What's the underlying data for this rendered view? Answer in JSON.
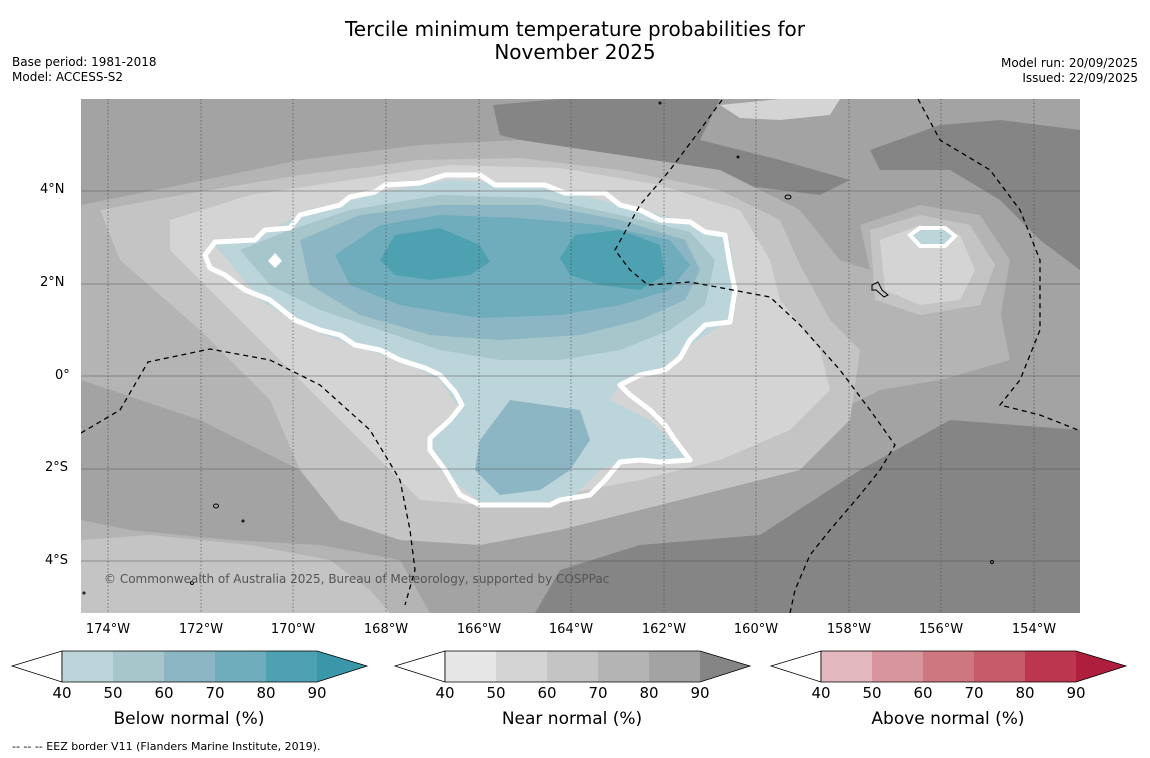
{
  "title": {
    "line1": "Tercile minimum temperature probabilities for",
    "line2": "November 2025"
  },
  "meta": {
    "base_period": "Base period: 1981-2018",
    "model": "Model: ACCESS-S2",
    "model_run": "Model run: 20/09/2025",
    "issued": "Issued: 22/09/2025"
  },
  "map": {
    "lat_labels": [
      "4°N",
      "2°N",
      "0°",
      "2°S",
      "4°S"
    ],
    "lon_labels": [
      "174°W",
      "172°W",
      "170°W",
      "168°W",
      "166°W",
      "164°W",
      "162°W",
      "160°W",
      "158°W",
      "156°W",
      "154°W"
    ],
    "copyright": "© Commonwealth of Australia 2025, Bureau of Meteorology, supported by COSPPac"
  },
  "colorbars": [
    {
      "title": "Below normal (%)",
      "ticks": [
        "40",
        "50",
        "60",
        "70",
        "80",
        "90"
      ],
      "colors": [
        "#bcd5da",
        "#a6c6cb",
        "#8cb6c3",
        "#6fadbc",
        "#4ea1b1",
        "#3a97aa"
      ]
    },
    {
      "title": "Near normal (%)",
      "ticks": [
        "40",
        "50",
        "60",
        "70",
        "80",
        "90"
      ],
      "colors": [
        "#e6e6e6",
        "#d4d4d4",
        "#c4c4c4",
        "#b4b4b4",
        "#a3a3a3",
        "#858585"
      ]
    },
    {
      "title": "Above normal (%)",
      "ticks": [
        "40",
        "50",
        "60",
        "70",
        "80",
        "90"
      ],
      "colors": [
        "#e3b8be",
        "#d9959d",
        "#cf7780",
        "#c65b6a",
        "#bd3650",
        "#b01e3e"
      ]
    }
  ],
  "footnote": "-- -- -- EEZ border V11 (Flanders Marine Institute, 2019)."
}
